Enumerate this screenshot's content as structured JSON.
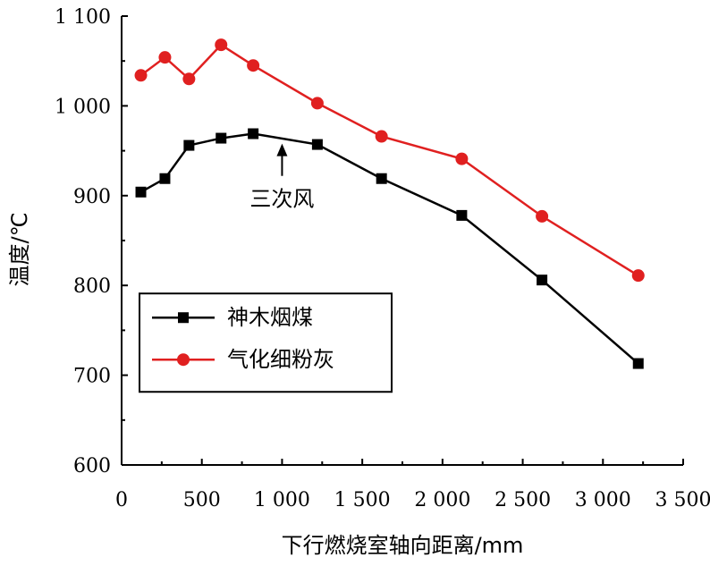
{
  "chart_data": {
    "type": "line",
    "xlabel": "下行燃烧室轴向距离/mm",
    "ylabel": "温度/℃",
    "xlim": [
      0,
      3500
    ],
    "ylim": [
      600,
      1100
    ],
    "xticks": [
      0,
      500,
      1000,
      1500,
      2000,
      2500,
      3000,
      3500
    ],
    "xtick_labels": [
      "0",
      "500",
      "1 000",
      "1 500",
      "2 000",
      "2 500",
      "3 000",
      "3 500"
    ],
    "yticks": [
      600,
      700,
      800,
      900,
      1000,
      1100
    ],
    "ytick_labels": [
      "600",
      "700",
      "800",
      "900",
      "1 000",
      "1 100"
    ],
    "grid": false,
    "legend_position": "bottom-left",
    "series": [
      {
        "name": "神木烟煤",
        "color": "#000000",
        "marker": "square",
        "x": [
          120,
          270,
          420,
          620,
          820,
          1220,
          1620,
          2120,
          2620,
          3220
        ],
        "y": [
          904,
          919,
          956,
          964,
          969,
          957,
          919,
          878,
          806,
          713
        ]
      },
      {
        "name": "气化细粉灰",
        "color": "#e02020",
        "marker": "circle",
        "x": [
          120,
          270,
          420,
          620,
          820,
          1220,
          1620,
          2120,
          2620,
          3220
        ],
        "y": [
          1034,
          1054,
          1030,
          1068,
          1045,
          1003,
          966,
          941,
          877,
          811
        ]
      }
    ],
    "annotations": [
      {
        "text": "三次风",
        "x": 1000,
        "y": 958,
        "text_y": 920
      }
    ]
  }
}
